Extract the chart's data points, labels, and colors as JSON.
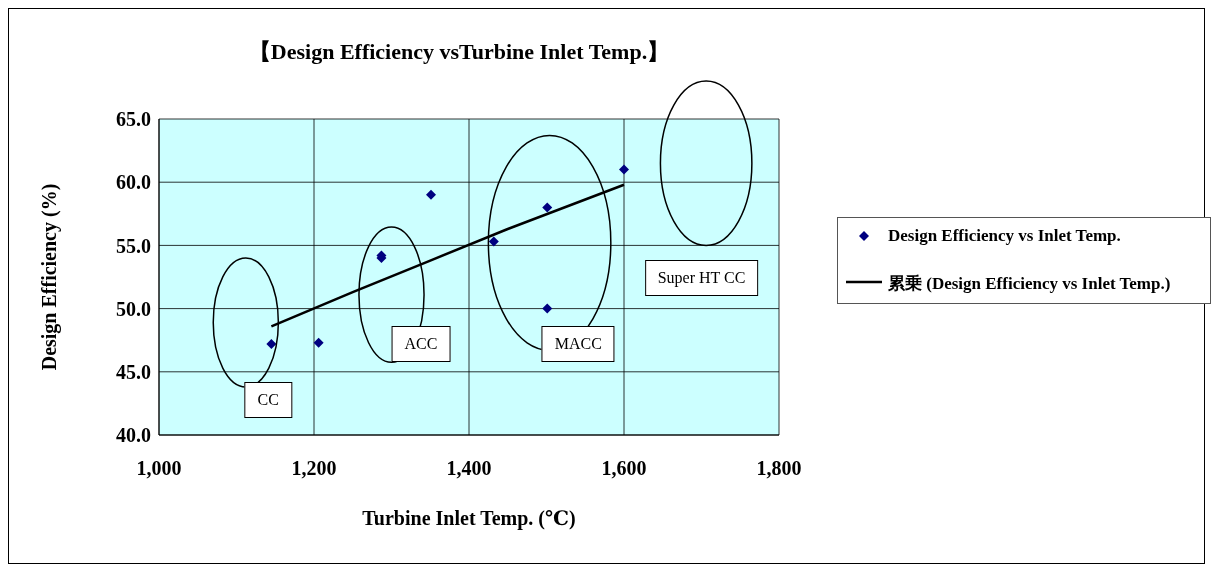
{
  "chart_data": {
    "type": "scatter",
    "title": "【Design Efficiency vsTurbine Inlet Temp.】",
    "xlabel": "Turbine Inlet Temp. (℃)",
    "ylabel": "Design Efficiency (%)",
    "series": [
      {
        "name": "Design Efficiency vs Inlet Temp.",
        "color": "#000080",
        "marker": "diamond",
        "x": [
          1145,
          1206,
          1287,
          1287,
          1351,
          1432,
          1501,
          1501,
          1600
        ],
        "values": [
          47.2,
          47.3,
          54.2,
          54.0,
          59.0,
          55.3,
          58.0,
          50.0,
          61.0
        ]
      },
      {
        "name": "累乗 (Design Efficiency vs Inlet Temp.)",
        "type": "line",
        "color": "#000000",
        "marker": "none",
        "x": [
          1145,
          1250,
          1350,
          1450,
          1600
        ],
        "values": [
          48.6,
          51.3,
          53.8,
          56.3,
          59.8
        ]
      }
    ],
    "xlim": [
      1000,
      1800
    ],
    "xticks": [
      {
        "value": 1000,
        "label": "1,000"
      },
      {
        "value": 1200,
        "label": "1,200"
      },
      {
        "value": 1400,
        "label": "1,400"
      },
      {
        "value": 1600,
        "label": "1,600"
      },
      {
        "value": 1800,
        "label": "1,800"
      }
    ],
    "ylim": [
      40,
      65
    ],
    "yticks": [
      {
        "value": 40,
        "label": "40.0"
      },
      {
        "value": 45,
        "label": "45.0"
      },
      {
        "value": 50,
        "label": "50.0"
      },
      {
        "value": 55,
        "label": "55.0"
      },
      {
        "value": 60,
        "label": "60.0"
      },
      {
        "value": 65,
        "label": "65.0"
      }
    ],
    "grid": true,
    "legend": "right",
    "annotations": [
      "CC",
      "ACC",
      "MACC",
      "Super HT CC"
    ]
  }
}
